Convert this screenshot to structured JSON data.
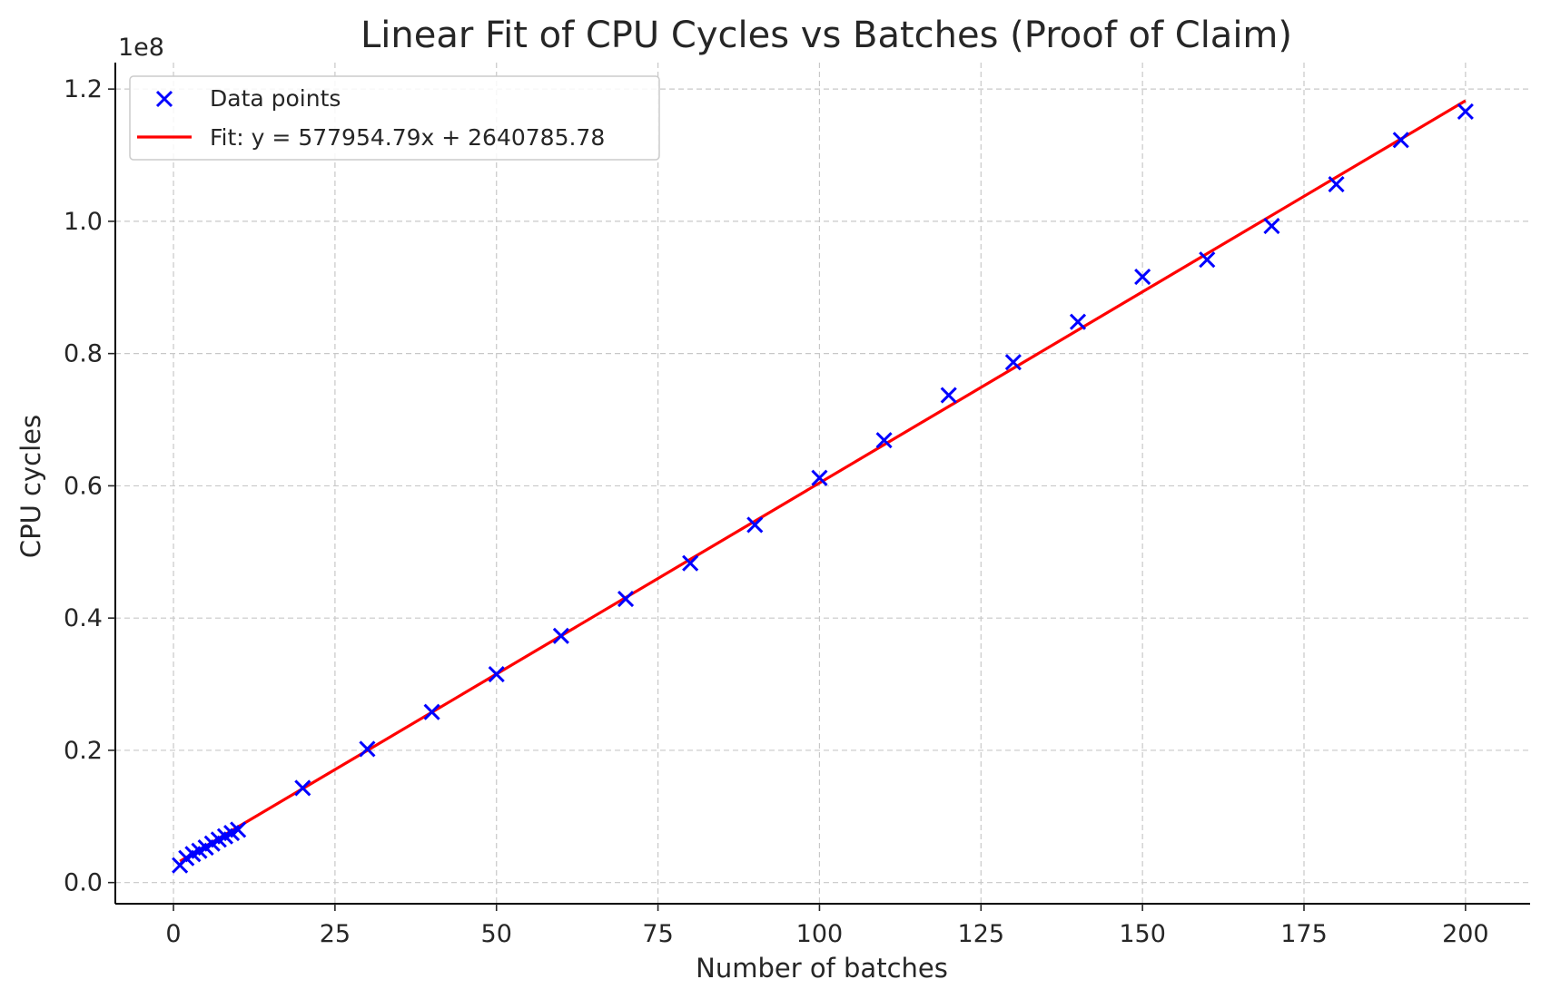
{
  "chart_data": {
    "type": "scatter",
    "title": "Linear Fit of CPU Cycles vs Batches (Proof of Claim)",
    "xlabel": "Number of batches",
    "ylabel": "CPU cycles",
    "y_offset_label": "1e8",
    "xlim": [
      -9,
      210
    ],
    "ylim": [
      -3200000,
      124000000
    ],
    "x_ticks": [
      0,
      25,
      50,
      75,
      100,
      125,
      150,
      175,
      200
    ],
    "x_tick_labels": [
      "0",
      "25",
      "50",
      "75",
      "100",
      "125",
      "150",
      "175",
      "200"
    ],
    "y_ticks": [
      0,
      20000000,
      40000000,
      60000000,
      80000000,
      100000000,
      120000000
    ],
    "y_tick_labels": [
      "0.0",
      "0.2",
      "0.4",
      "0.6",
      "0.8",
      "1.0",
      "1.2"
    ],
    "grid": true,
    "legend_position": "top-left",
    "series": [
      {
        "name": "Data points",
        "kind": "scatter",
        "marker": "x",
        "color": "#0000ff",
        "x": [
          1,
          2,
          3,
          4,
          5,
          6,
          7,
          8,
          9,
          10,
          20,
          30,
          40,
          50,
          60,
          70,
          80,
          90,
          100,
          110,
          120,
          130,
          140,
          150,
          160,
          170,
          180,
          190,
          200
        ],
        "y": [
          2600000,
          3700000,
          4300000,
          4800000,
          5300000,
          5900000,
          6500000,
          7000000,
          7500000,
          8000000,
          14300000,
          20200000,
          25800000,
          31500000,
          37300000,
          42900000,
          48300000,
          54100000,
          61200000,
          66900000,
          73700000,
          78700000,
          84800000,
          91600000,
          94200000,
          99300000,
          105600000,
          112300000,
          116600000
        ]
      },
      {
        "name": "Fit: y = 577954.79x + 2640785.78",
        "kind": "line",
        "color": "#ff0000",
        "slope": 577954.79,
        "intercept": 2640785.78,
        "x_range": [
          1,
          200
        ]
      }
    ]
  }
}
